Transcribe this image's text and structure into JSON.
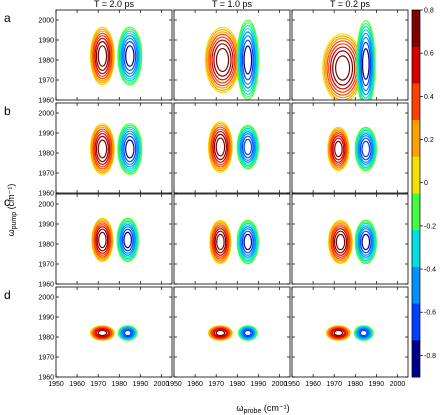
{
  "chart_data": {
    "type": "contour",
    "column_titles": [
      "T = 2.0 ps",
      "T = 1.0 ps",
      "T = 0.2 ps"
    ],
    "row_labels": [
      "a",
      "b",
      "c",
      "d"
    ],
    "xlabel_main": "ω",
    "xlabel_sub": "probe",
    "xlabel_unit": " (cm⁻¹)",
    "ylabel_main": "ω",
    "ylabel_sub": "pump",
    "ylabel_unit": " (cm⁻¹)",
    "xlim": [
      1950,
      2005
    ],
    "ylim": [
      1960,
      2005
    ],
    "x_ticks_labels": [
      "1950",
      "1960",
      "1970",
      "1980",
      "1990",
      "2000"
    ],
    "y_ticks_labels": [
      "1960",
      "1970",
      "1980",
      "1990",
      "2000"
    ],
    "colorbar": {
      "range": [
        -0.9,
        0.8
      ],
      "tick_labels": [
        "0.8",
        "0.6",
        "0.4",
        "0.2",
        "0",
        "-0.2",
        "-0.4",
        "-0.6",
        "-0.8"
      ],
      "tick_values": [
        0.8,
        0.6,
        0.4,
        0.2,
        0,
        -0.2,
        -0.4,
        -0.6,
        -0.8
      ],
      "colors": [
        "#7f0000",
        "#d40000",
        "#ff4000",
        "#ff9f00",
        "#f5e000",
        "#40ff40",
        "#00e0e0",
        "#0090ff",
        "#0040ff",
        "#00008f"
      ]
    },
    "panels": [
      {
        "row": "a",
        "col": "T = 2.0 ps",
        "pos": {
          "x": 1972,
          "y": 1982,
          "amp": 0.8,
          "w": 4.5,
          "h": 16
        },
        "neg": {
          "x": 1985,
          "y": 1982,
          "amp": -0.8,
          "w": 4.5,
          "h": 16
        }
      },
      {
        "row": "a",
        "col": "T = 1.0 ps",
        "pos": {
          "x": 1973,
          "y": 1980,
          "amp": 0.8,
          "w": 6.5,
          "h": 18
        },
        "neg": {
          "x": 1985,
          "y": 1980,
          "amp": -0.8,
          "w": 4.0,
          "h": 22
        }
      },
      {
        "row": "a",
        "col": "T = 0.2 ps",
        "pos": {
          "x": 1974,
          "y": 1976,
          "amp": 0.8,
          "w": 7.5,
          "h": 19
        },
        "neg": {
          "x": 1985,
          "y": 1978,
          "amp": -0.8,
          "w": 3.5,
          "h": 24
        }
      },
      {
        "row": "b",
        "col": "T = 2.0 ps",
        "pos": {
          "x": 1972,
          "y": 1982,
          "amp": 0.8,
          "w": 4.5,
          "h": 14
        },
        "neg": {
          "x": 1985,
          "y": 1982,
          "amp": -0.8,
          "w": 4.5,
          "h": 14
        }
      },
      {
        "row": "b",
        "col": "T = 1.0 ps",
        "pos": {
          "x": 1972,
          "y": 1983,
          "amp": 0.8,
          "w": 4.5,
          "h": 14
        },
        "neg": {
          "x": 1985,
          "y": 1983,
          "amp": -0.7,
          "w": 4.0,
          "h": 12
        }
      },
      {
        "row": "b",
        "col": "T = 0.2 ps",
        "pos": {
          "x": 1972,
          "y": 1982,
          "amp": 0.7,
          "w": 4.0,
          "h": 12
        },
        "neg": {
          "x": 1985,
          "y": 1982,
          "amp": -0.7,
          "w": 4.0,
          "h": 12
        }
      },
      {
        "row": "c",
        "col": "T = 2.0 ps",
        "pos": {
          "x": 1972,
          "y": 1982,
          "amp": 0.8,
          "w": 4.0,
          "h": 12
        },
        "neg": {
          "x": 1984,
          "y": 1982,
          "amp": -0.8,
          "w": 4.0,
          "h": 12
        }
      },
      {
        "row": "c",
        "col": "T = 1.0 ps",
        "pos": {
          "x": 1972,
          "y": 1981,
          "amp": 0.8,
          "w": 4.0,
          "h": 12
        },
        "neg": {
          "x": 1985,
          "y": 1981,
          "amp": -0.8,
          "w": 4.0,
          "h": 12
        }
      },
      {
        "row": "c",
        "col": "T = 0.2 ps",
        "pos": {
          "x": 1973,
          "y": 1981,
          "amp": 0.8,
          "w": 4.5,
          "h": 12
        },
        "neg": {
          "x": 1985,
          "y": 1981,
          "amp": -0.8,
          "w": 4.0,
          "h": 12
        }
      },
      {
        "row": "d",
        "col": "T = 2.0 ps",
        "pos": {
          "x": 1972,
          "y": 1982,
          "amp": 0.7,
          "w": 4.5,
          "h": 4.0
        },
        "neg": {
          "x": 1984,
          "y": 1982,
          "amp": -0.7,
          "w": 3.5,
          "h": 4.0
        }
      },
      {
        "row": "d",
        "col": "T = 1.0 ps",
        "pos": {
          "x": 1972,
          "y": 1982,
          "amp": 0.7,
          "w": 4.5,
          "h": 4.0
        },
        "neg": {
          "x": 1985,
          "y": 1982,
          "amp": -0.7,
          "w": 3.5,
          "h": 4.0
        }
      },
      {
        "row": "d",
        "col": "T = 0.2 ps",
        "pos": {
          "x": 1972,
          "y": 1982,
          "amp": 0.7,
          "w": 4.5,
          "h": 4.0
        },
        "neg": {
          "x": 1984,
          "y": 1982,
          "amp": -0.7,
          "w": 3.5,
          "h": 4.0
        }
      }
    ]
  }
}
